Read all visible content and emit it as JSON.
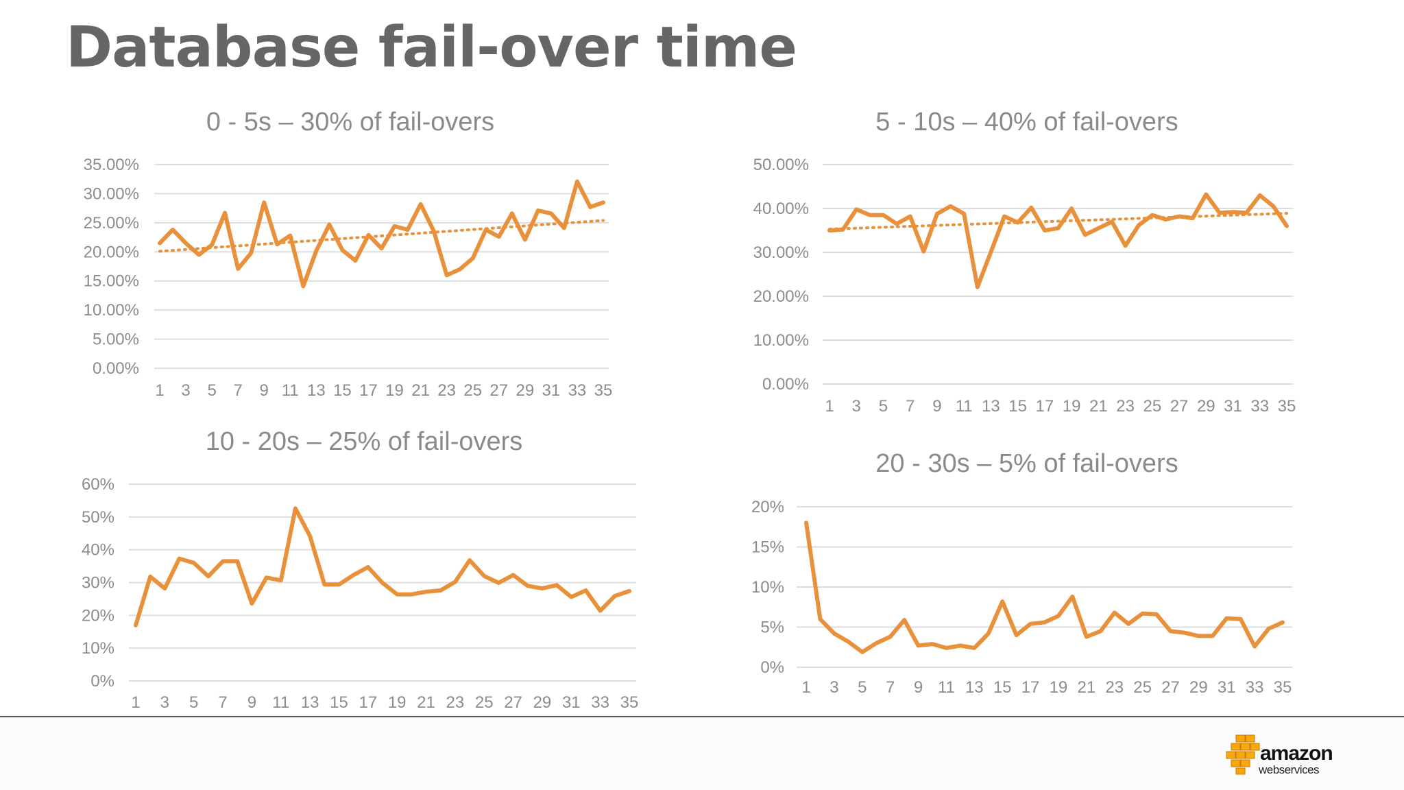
{
  "slide": {
    "title": "Database fail-over time"
  },
  "colors": {
    "series": "#E8913A",
    "title": "#666666",
    "grid": "#DDDDDD"
  },
  "chart_data": [
    {
      "type": "line",
      "title": "0 - 5s – 30% of fail-overs",
      "x": [
        1,
        2,
        3,
        4,
        5,
        6,
        7,
        8,
        9,
        10,
        11,
        12,
        13,
        14,
        15,
        16,
        17,
        18,
        19,
        20,
        21,
        22,
        23,
        24,
        25,
        26,
        27,
        28,
        29,
        30,
        31,
        32,
        33,
        34,
        35
      ],
      "x_tick_labels": [
        "1",
        "3",
        "5",
        "7",
        "9",
        "11",
        "13",
        "15",
        "17",
        "19",
        "21",
        "23",
        "25",
        "27",
        "29",
        "31",
        "33",
        "35"
      ],
      "ylim": [
        0,
        35
      ],
      "y_ticks": [
        0,
        5,
        10,
        15,
        20,
        25,
        30,
        35
      ],
      "y_tick_labels": [
        "0.00%",
        "5.00%",
        "10.00%",
        "15.00%",
        "20.00%",
        "25.00%",
        "30.00%",
        "35.00%"
      ],
      "series": [
        {
          "name": "0 - 5s",
          "values": [
            21.5,
            23.8,
            21.5,
            19.5,
            21.2,
            26.7,
            17.1,
            19.8,
            28.5,
            21.3,
            22.8,
            14.1,
            20.2,
            24.7,
            20.3,
            18.5,
            22.9,
            20.6,
            24.4,
            23.8,
            28.2,
            23.6,
            16.0,
            17.0,
            18.9,
            23.8,
            22.6,
            26.6,
            22.1,
            27.1,
            26.6,
            24.1,
            32.1,
            27.7,
            28.5
          ]
        }
      ],
      "trendline": {
        "type": "linear",
        "start": 20.1,
        "end": 25.4
      }
    },
    {
      "type": "line",
      "title": "5 - 10s – 40% of fail-overs",
      "x": [
        1,
        2,
        3,
        4,
        5,
        6,
        7,
        8,
        9,
        10,
        11,
        12,
        13,
        14,
        15,
        16,
        17,
        18,
        19,
        20,
        21,
        22,
        23,
        24,
        25,
        26,
        27,
        28,
        29,
        30,
        31,
        32,
        33,
        34,
        35
      ],
      "x_tick_labels": [
        "1",
        "3",
        "5",
        "7",
        "9",
        "11",
        "13",
        "15",
        "17",
        "19",
        "21",
        "23",
        "25",
        "27",
        "29",
        "31",
        "33",
        "35"
      ],
      "ylim": [
        0,
        50
      ],
      "y_ticks": [
        0,
        10,
        20,
        30,
        40,
        50
      ],
      "y_tick_labels": [
        "0.00%",
        "10.00%",
        "20.00%",
        "30.00%",
        "40.00%",
        "50.00%"
      ],
      "series": [
        {
          "name": "5 - 10s",
          "values": [
            35.0,
            35.2,
            39.8,
            38.5,
            38.5,
            36.5,
            38.2,
            30.2,
            38.8,
            40.5,
            38.8,
            22.1,
            30.1,
            38.2,
            36.8,
            40.2,
            35.0,
            35.5,
            40.0,
            34.0,
            35.5,
            37.0,
            31.5,
            36.2,
            38.5,
            37.5,
            38.2,
            37.8,
            43.2,
            39.0,
            39.2,
            39.0,
            43.0,
            40.5,
            36.0
          ]
        }
      ],
      "trendline": {
        "type": "linear",
        "start": 35.3,
        "end": 38.9
      }
    },
    {
      "type": "line",
      "title": "10 - 20s – 25% of fail-overs",
      "x": [
        1,
        2,
        3,
        4,
        5,
        6,
        7,
        8,
        9,
        10,
        11,
        12,
        13,
        14,
        15,
        16,
        17,
        18,
        19,
        20,
        21,
        22,
        23,
        24,
        25,
        26,
        27,
        28,
        29,
        30,
        31,
        32,
        33,
        34,
        35
      ],
      "x_tick_labels": [
        "1",
        "3",
        "5",
        "7",
        "9",
        "11",
        "13",
        "15",
        "17",
        "19",
        "21",
        "23",
        "25",
        "27",
        "29",
        "31",
        "33",
        "35"
      ],
      "ylim": [
        0,
        60
      ],
      "y_ticks": [
        0,
        10,
        20,
        30,
        40,
        50,
        60
      ],
      "y_tick_labels": [
        "0%",
        "10%",
        "20%",
        "30%",
        "40%",
        "50%",
        "60%"
      ],
      "series": [
        {
          "name": "10 - 20s",
          "values": [
            17,
            31.8,
            28.2,
            37.3,
            36,
            31.9,
            36.5,
            36.5,
            23.6,
            31.5,
            30.7,
            52.6,
            44.2,
            29.4,
            29.4,
            32.3,
            34.7,
            29.9,
            26.4,
            26.4,
            27.2,
            27.6,
            30.2,
            36.8,
            32,
            29.9,
            32.3,
            29,
            28.2,
            29.2,
            25.6,
            27.6,
            21.4,
            25.9,
            27.4
          ]
        }
      ]
    },
    {
      "type": "line",
      "title": "20 - 30s – 5% of fail-overs",
      "x": [
        1,
        2,
        3,
        4,
        5,
        6,
        7,
        8,
        9,
        10,
        11,
        12,
        13,
        14,
        15,
        16,
        17,
        18,
        19,
        20,
        21,
        22,
        23,
        24,
        25,
        26,
        27,
        28,
        29,
        30,
        31,
        32,
        33,
        34,
        35
      ],
      "x_tick_labels": [
        "1",
        "3",
        "5",
        "7",
        "9",
        "11",
        "13",
        "15",
        "17",
        "19",
        "21",
        "23",
        "25",
        "27",
        "29",
        "31",
        "33",
        "35"
      ],
      "ylim": [
        0,
        20
      ],
      "y_ticks": [
        0,
        5,
        10,
        15,
        20
      ],
      "y_tick_labels": [
        "0%",
        "5%",
        "10%",
        "15%",
        "20%"
      ],
      "series": [
        {
          "name": "20 - 30s",
          "values": [
            18,
            6,
            4.2,
            3.2,
            1.9,
            3,
            3.8,
            5.9,
            2.7,
            2.9,
            2.4,
            2.7,
            2.4,
            4.2,
            8.2,
            4,
            5.4,
            5.6,
            6.4,
            8.8,
            3.8,
            4.5,
            6.8,
            5.4,
            6.7,
            6.6,
            4.5,
            4.3,
            3.9,
            3.9,
            6.1,
            6,
            2.6,
            4.8,
            5.6
          ]
        }
      ]
    }
  ]
}
